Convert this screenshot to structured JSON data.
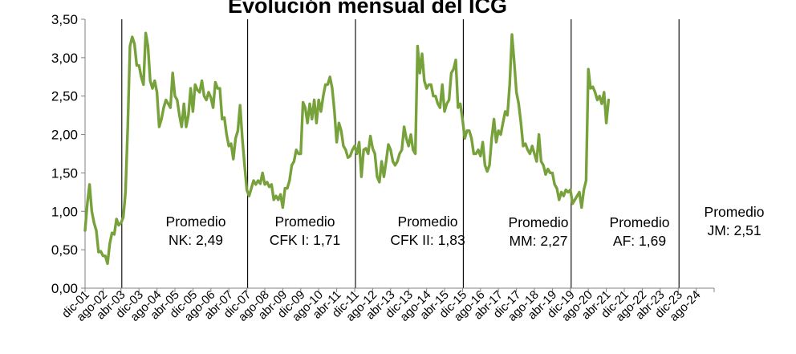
{
  "chart_data": {
    "type": "line",
    "title": "Evolución mensual del ICG",
    "xlabel": "",
    "ylabel": "",
    "ylim": [
      0,
      3.5
    ],
    "yticks": [
      "0,00",
      "0,50",
      "1,00",
      "1,50",
      "2,00",
      "2,50",
      "3,00",
      "3,50"
    ],
    "grid": false,
    "legend": "none",
    "line_color": "#77a13a",
    "x_tick_labels": [
      "dic-01",
      "ago-02",
      "abr-03",
      "dic-03",
      "ago-04",
      "abr-05",
      "dic-05",
      "ago-06",
      "abr-07",
      "dic-07",
      "ago-08",
      "abr-09",
      "dic-09",
      "ago-10",
      "abr-11",
      "dic-11",
      "ago-12",
      "abr-13",
      "dic-13",
      "ago-14",
      "abr-15",
      "dic-15",
      "ago-16",
      "abr-17",
      "dic-17",
      "ago-18",
      "abr-19",
      "dic-19",
      "ago-20",
      "abr-21",
      "dic-21",
      "ago-22",
      "abr-23",
      "dic-23",
      "ago-24"
    ],
    "dividers": [
      "abr-03",
      "dic-07",
      "dic-11",
      "dic-15",
      "dic-19",
      "dic-23"
    ],
    "series": [
      {
        "values": [
          [
            0,
            0.75
          ],
          [
            1,
            1.1
          ],
          [
            2,
            1.35
          ],
          [
            3,
            1.0
          ],
          [
            4,
            0.85
          ],
          [
            5,
            0.75
          ],
          [
            6,
            0.47
          ],
          [
            7,
            0.48
          ],
          [
            8,
            0.42
          ],
          [
            9,
            0.42
          ],
          [
            10,
            0.32
          ],
          [
            11,
            0.58
          ],
          [
            12,
            0.72
          ],
          [
            13,
            0.7
          ],
          [
            14,
            0.9
          ],
          [
            15,
            0.82
          ],
          [
            16,
            0.85
          ],
          [
            17,
            0.92
          ],
          [
            18,
            1.25
          ],
          [
            19,
            2.1
          ],
          [
            20,
            3.15
          ],
          [
            21,
            3.27
          ],
          [
            22,
            3.18
          ],
          [
            23,
            2.9
          ],
          [
            24,
            2.9
          ],
          [
            25,
            2.75
          ],
          [
            26,
            2.65
          ],
          [
            27,
            3.32
          ],
          [
            28,
            3.15
          ],
          [
            29,
            2.7
          ],
          [
            30,
            2.6
          ],
          [
            31,
            2.7
          ],
          [
            32,
            2.55
          ],
          [
            33,
            2.1
          ],
          [
            34,
            2.2
          ],
          [
            35,
            2.35
          ],
          [
            36,
            2.45
          ],
          [
            37,
            2.4
          ],
          [
            38,
            2.35
          ],
          [
            39,
            2.8
          ],
          [
            40,
            2.5
          ],
          [
            41,
            2.45
          ],
          [
            42,
            2.25
          ],
          [
            43,
            2.1
          ],
          [
            44,
            2.4
          ],
          [
            45,
            2.1
          ],
          [
            46,
            2.25
          ],
          [
            47,
            2.6
          ],
          [
            48,
            2.3
          ],
          [
            49,
            2.65
          ],
          [
            50,
            2.58
          ],
          [
            51,
            2.55
          ],
          [
            52,
            2.7
          ],
          [
            53,
            2.5
          ],
          [
            54,
            2.45
          ],
          [
            55,
            2.55
          ],
          [
            56,
            2.48
          ],
          [
            57,
            2.35
          ],
          [
            58,
            2.68
          ],
          [
            59,
            2.6
          ],
          [
            60,
            2.6
          ],
          [
            61,
            2.2
          ],
          [
            62,
            2.22
          ],
          [
            63,
            2.0
          ],
          [
            64,
            1.85
          ],
          [
            65,
            1.88
          ],
          [
            66,
            1.68
          ],
          [
            67,
            1.95
          ],
          [
            68,
            2.05
          ],
          [
            69,
            2.38
          ],
          [
            70,
            1.95
          ],
          [
            71,
            1.6
          ],
          [
            72,
            1.28
          ],
          [
            73,
            1.2
          ],
          [
            74,
            1.3
          ],
          [
            75,
            1.4
          ],
          [
            76,
            1.35
          ],
          [
            77,
            1.4
          ],
          [
            78,
            1.36
          ],
          [
            79,
            1.5
          ],
          [
            80,
            1.35
          ],
          [
            81,
            1.38
          ],
          [
            82,
            1.32
          ],
          [
            83,
            1.35
          ],
          [
            84,
            1.15
          ],
          [
            85,
            1.2
          ],
          [
            86,
            1.15
          ],
          [
            87,
            1.22
          ],
          [
            88,
            1.05
          ],
          [
            89,
            1.3
          ],
          [
            90,
            1.3
          ],
          [
            91,
            1.4
          ],
          [
            92,
            1.6
          ],
          [
            93,
            1.65
          ],
          [
            94,
            1.8
          ],
          [
            95,
            1.75
          ],
          [
            96,
            1.75
          ],
          [
            97,
            2.42
          ],
          [
            98,
            2.35
          ],
          [
            99,
            2.15
          ],
          [
            100,
            2.4
          ],
          [
            101,
            2.2
          ],
          [
            102,
            2.45
          ],
          [
            103,
            2.15
          ],
          [
            104,
            2.45
          ],
          [
            105,
            2.3
          ],
          [
            106,
            2.5
          ],
          [
            107,
            2.65
          ],
          [
            108,
            2.65
          ],
          [
            109,
            2.75
          ],
          [
            110,
            2.6
          ],
          [
            111,
            2.3
          ],
          [
            112,
            1.9
          ],
          [
            113,
            2.15
          ],
          [
            114,
            2.05
          ],
          [
            115,
            1.85
          ],
          [
            116,
            1.8
          ],
          [
            117,
            1.7
          ],
          [
            118,
            1.72
          ],
          [
            119,
            1.8
          ],
          [
            120,
            1.85
          ],
          [
            121,
            1.75
          ],
          [
            122,
            1.9
          ],
          [
            123,
            1.45
          ],
          [
            124,
            1.8
          ],
          [
            125,
            1.82
          ],
          [
            126,
            1.75
          ],
          [
            127,
            1.98
          ],
          [
            128,
            1.82
          ],
          [
            129,
            1.75
          ],
          [
            130,
            1.45
          ],
          [
            131,
            1.38
          ],
          [
            132,
            1.65
          ],
          [
            133,
            1.45
          ],
          [
            134,
            1.65
          ],
          [
            135,
            1.87
          ],
          [
            136,
            1.8
          ],
          [
            137,
            1.65
          ],
          [
            138,
            1.6
          ],
          [
            139,
            1.65
          ],
          [
            140,
            1.75
          ],
          [
            141,
            1.8
          ],
          [
            142,
            2.1
          ],
          [
            143,
            1.95
          ],
          [
            144,
            1.85
          ],
          [
            145,
            2.0
          ],
          [
            146,
            1.8
          ],
          [
            147,
            1.75
          ],
          [
            148,
            3.15
          ],
          [
            149,
            2.8
          ],
          [
            150,
            3.05
          ],
          [
            151,
            2.7
          ],
          [
            152,
            2.6
          ],
          [
            153,
            2.65
          ],
          [
            154,
            2.65
          ],
          [
            155,
            2.5
          ],
          [
            156,
            2.5
          ],
          [
            157,
            2.4
          ],
          [
            158,
            2.35
          ],
          [
            159,
            2.65
          ],
          [
            160,
            2.3
          ],
          [
            161,
            2.4
          ],
          [
            162,
            2.45
          ],
          [
            163,
            2.8
          ],
          [
            164,
            2.85
          ],
          [
            165,
            2.97
          ],
          [
            166,
            2.35
          ],
          [
            167,
            2.4
          ],
          [
            168,
            2.2
          ],
          [
            169,
            1.95
          ],
          [
            170,
            2.05
          ],
          [
            171,
            2.05
          ],
          [
            172,
            1.95
          ],
          [
            173,
            1.75
          ],
          [
            174,
            1.75
          ],
          [
            175,
            1.8
          ],
          [
            176,
            1.72
          ],
          [
            177,
            1.9
          ],
          [
            178,
            1.6
          ],
          [
            179,
            1.52
          ],
          [
            180,
            1.6
          ],
          [
            181,
            1.95
          ],
          [
            182,
            2.2
          ],
          [
            183,
            1.9
          ],
          [
            184,
            2.05
          ],
          [
            185,
            2.0
          ],
          [
            186,
            2.15
          ],
          [
            187,
            2.3
          ],
          [
            188,
            2.25
          ],
          [
            189,
            2.65
          ],
          [
            190,
            3.3
          ],
          [
            191,
            2.95
          ],
          [
            192,
            2.55
          ],
          [
            193,
            2.4
          ],
          [
            194,
            2.15
          ],
          [
            195,
            1.85
          ],
          [
            196,
            1.88
          ],
          [
            197,
            1.8
          ],
          [
            198,
            1.75
          ],
          [
            199,
            1.85
          ],
          [
            200,
            1.75
          ],
          [
            201,
            1.65
          ],
          [
            202,
            2.0
          ],
          [
            203,
            1.65
          ],
          [
            204,
            1.6
          ],
          [
            205,
            1.48
          ],
          [
            206,
            1.55
          ],
          [
            207,
            1.5
          ],
          [
            208,
            1.5
          ],
          [
            209,
            1.35
          ],
          [
            210,
            1.3
          ],
          [
            211,
            1.15
          ],
          [
            212,
            1.25
          ],
          [
            213,
            1.2
          ],
          [
            214,
            1.28
          ],
          [
            215,
            1.25
          ],
          [
            216,
            1.28
          ],
          [
            217,
            1.1
          ],
          [
            218,
            1.15
          ],
          [
            219,
            1.2
          ],
          [
            220,
            1.25
          ],
          [
            221,
            1.05
          ],
          [
            222,
            1.28
          ],
          [
            223,
            1.4
          ],
          [
            224,
            2.85
          ],
          [
            225,
            2.6
          ],
          [
            226,
            2.62
          ],
          [
            227,
            2.55
          ],
          [
            228,
            2.45
          ],
          [
            229,
            2.5
          ],
          [
            230,
            2.4
          ],
          [
            231,
            2.55
          ],
          [
            232,
            2.15
          ],
          [
            233,
            2.45
          ]
        ]
      }
    ],
    "annotations": [
      {
        "line1": "Promedio",
        "line2": "NK: 2,49"
      },
      {
        "line1": "Promedio",
        "line2": "CFK I: 1,71"
      },
      {
        "line1": "Promedio",
        "line2": "CFK II: 1,83"
      },
      {
        "line1": "Promedio",
        "line2": "MM: 2,27"
      },
      {
        "line1": "Promedio",
        "line2": "AF: 1,69"
      },
      {
        "line1": "Promedio",
        "line2": "JM: 2,51"
      }
    ]
  }
}
